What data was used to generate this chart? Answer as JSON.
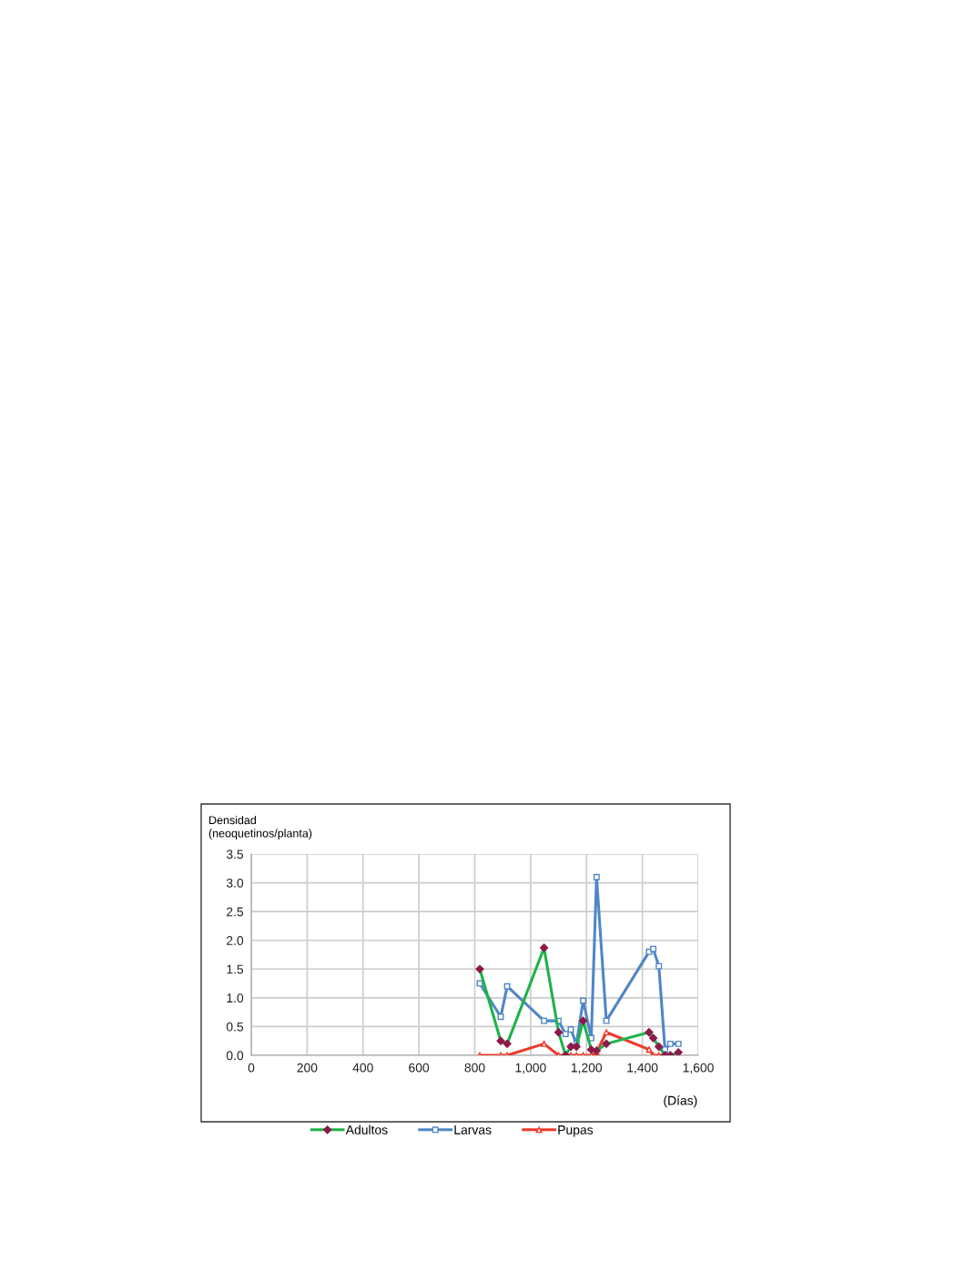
{
  "chart_data": {
    "type": "line",
    "ylabel": "Densidad\n(neoquetinos/planta)",
    "xlabel": "(Días)",
    "x": [
      818,
      893,
      916,
      1048,
      1100,
      1125,
      1144,
      1164,
      1188,
      1217,
      1236,
      1271,
      1424,
      1439,
      1459,
      1481,
      1500,
      1529
    ],
    "series": [
      {
        "name": "Adultos",
        "color": "#1db34a",
        "marker": "diamond",
        "values": [
          1.5,
          0.25,
          0.2,
          1.87,
          0.4,
          0.0,
          0.15,
          0.15,
          0.6,
          0.1,
          0.08,
          0.2,
          0.4,
          0.3,
          0.15,
          0.0,
          0.0,
          0.05
        ]
      },
      {
        "name": "Larvas",
        "color": "#4f86c6",
        "marker": "square",
        "values": [
          1.25,
          0.67,
          1.2,
          0.6,
          0.6,
          0.37,
          0.45,
          0.2,
          0.95,
          0.3,
          3.1,
          0.6,
          1.8,
          1.85,
          1.55,
          0.1,
          0.2,
          0.2
        ]
      },
      {
        "name": "Pupas",
        "color": "#ee3a2a",
        "marker": "triangle",
        "values": [
          0.0,
          0.0,
          0.0,
          0.2,
          0.0,
          0.0,
          0.0,
          0.0,
          0.0,
          0.0,
          0.05,
          0.4,
          0.1,
          0.0,
          0.0,
          0.0,
          0.0,
          0.0
        ]
      }
    ],
    "xlim": [
      0,
      1600
    ],
    "xticks": [
      0,
      200,
      400,
      600,
      800,
      {
        "value": 1000,
        "label": "1,000"
      },
      {
        "value": 1200,
        "label": "1,200"
      },
      {
        "value": 1400,
        "label": "1,400"
      },
      {
        "value": 1600,
        "label": "1,600"
      }
    ],
    "ylim": [
      0,
      3.5
    ],
    "yticks": [
      {
        "value": 0,
        "label": "0.0"
      },
      {
        "value": 0.5,
        "label": "0.5"
      },
      {
        "value": 1,
        "label": "1.0"
      },
      {
        "value": 1.5,
        "label": "1.5"
      },
      {
        "value": 2,
        "label": "2.0"
      },
      {
        "value": 2.5,
        "label": "2.5"
      },
      {
        "value": 3,
        "label": "3.0"
      },
      {
        "value": 3.5,
        "label": "3.5"
      }
    ],
    "grid": true,
    "legend": "bottom",
    "line_style": "solid"
  }
}
